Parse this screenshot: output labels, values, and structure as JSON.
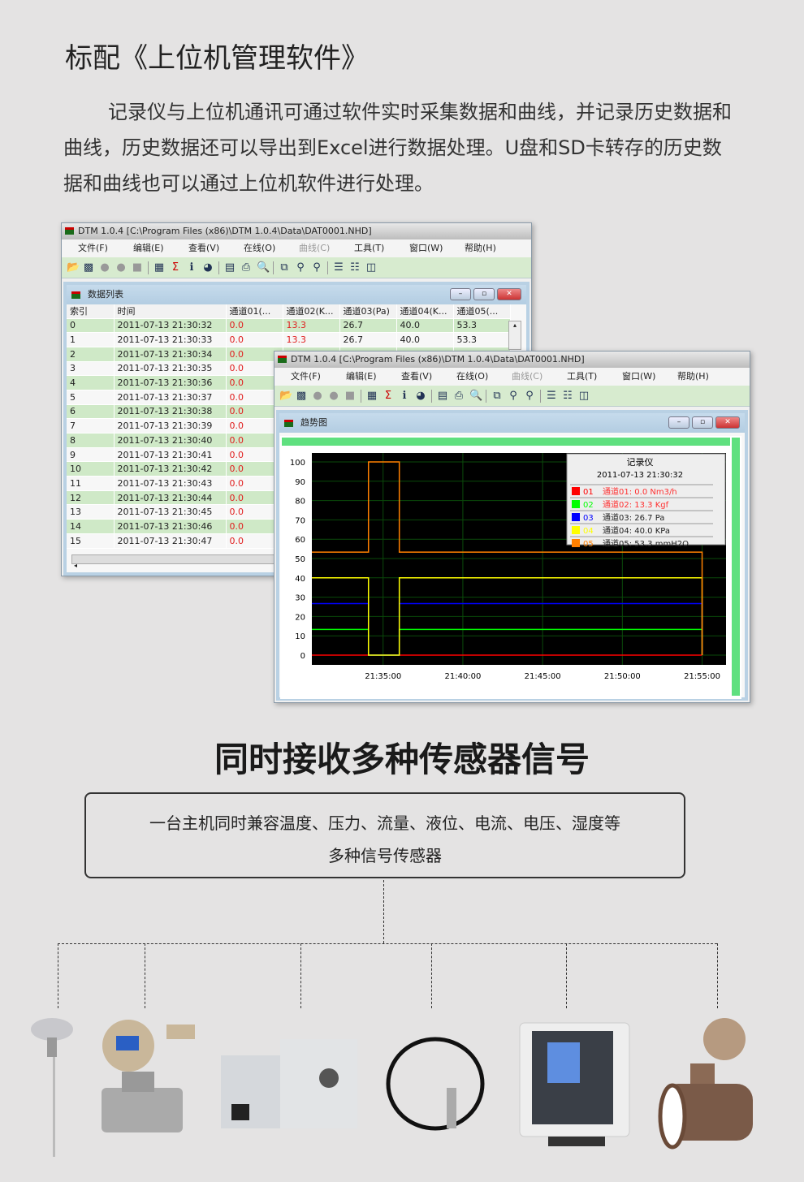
{
  "title": "标配《上位机管理软件》",
  "intro": "记录仪与上位机通讯可通过软件实时采集数据和曲线，并记录历史数据和曲线，历史数据还可以导出到Excel进行数据处理。U盘和SD卡转存的历史数据和曲线也可以通过上位机软件进行处理。",
  "window1": {
    "title": "DTM 1.0.4 [C:\\Program Files (x86)\\DTM 1.0.4\\Data\\DAT0001.NHD]",
    "menu": [
      "文件(F)",
      "编辑(E)",
      "查看(V)",
      "在线(O)",
      "曲线(C)",
      "工具(T)",
      "窗口(W)",
      "帮助(H)"
    ],
    "inner_title": "数据列表",
    "columns": [
      "索引",
      "时间",
      "通道01(...",
      "通道02(K...",
      "通道03(Pa)",
      "通道04(K...",
      "通道05(..."
    ],
    "rows": [
      [
        "0",
        "2011-07-13 21:30:32",
        "0.0",
        "13.3",
        "26.7",
        "40.0",
        "53.3"
      ],
      [
        "1",
        "2011-07-13 21:30:33",
        "0.0",
        "13.3",
        "26.7",
        "40.0",
        "53.3"
      ],
      [
        "2",
        "2011-07-13 21:30:34",
        "0.0"
      ],
      [
        "3",
        "2011-07-13 21:30:35",
        "0.0"
      ],
      [
        "4",
        "2011-07-13 21:30:36",
        "0.0"
      ],
      [
        "5",
        "2011-07-13 21:30:37",
        "0.0"
      ],
      [
        "6",
        "2011-07-13 21:30:38",
        "0.0"
      ],
      [
        "7",
        "2011-07-13 21:30:39",
        "0.0"
      ],
      [
        "8",
        "2011-07-13 21:30:40",
        "0.0"
      ],
      [
        "9",
        "2011-07-13 21:30:41",
        "0.0"
      ],
      [
        "10",
        "2011-07-13 21:30:42",
        "0.0"
      ],
      [
        "11",
        "2011-07-13 21:30:43",
        "0.0"
      ],
      [
        "12",
        "2011-07-13 21:30:44",
        "0.0"
      ],
      [
        "13",
        "2011-07-13 21:30:45",
        "0.0"
      ],
      [
        "14",
        "2011-07-13 21:30:46",
        "0.0"
      ],
      [
        "15",
        "2011-07-13 21:30:47",
        "0.0"
      ]
    ]
  },
  "window2": {
    "title": "DTM 1.0.4 [C:\\Program Files (x86)\\DTM 1.0.4\\Data\\DAT0001.NHD]",
    "menu": [
      "文件(F)",
      "编辑(E)",
      "查看(V)",
      "在线(O)",
      "曲线(C)",
      "工具(T)",
      "窗口(W)",
      "帮助(H)"
    ],
    "inner_title": "趋势图"
  },
  "chart_data": {
    "type": "line",
    "background": "#000000",
    "grid": true,
    "ylim": [
      0,
      100
    ],
    "yticks": [
      0,
      10,
      20,
      30,
      40,
      50,
      60,
      70,
      80,
      90,
      100
    ],
    "xlim": [
      "21:30:32",
      "21:56:30"
    ],
    "xticks": [
      "21:35:00",
      "21:40:00",
      "21:45:00",
      "21:50:00",
      "21:55:00"
    ],
    "legend": {
      "title": "记录仪",
      "time": "2011-07-13 21:30:32",
      "placement": "top-right",
      "entries": [
        {
          "code": "01",
          "text": "通道01: 0.0 Nm3/h",
          "color": "#ff0000"
        },
        {
          "code": "02",
          "text": "通道02: 13.3 Kgf",
          "color": "#00ff00"
        },
        {
          "code": "03",
          "text": "通道03: 26.7 Pa",
          "color": "#0000ff"
        },
        {
          "code": "04",
          "text": "通道04: 40.0 KPa",
          "color": "#ffff00"
        },
        {
          "code": "05",
          "text": "通道05: 53.3 mmH2O",
          "color": "#ff8000"
        }
      ]
    },
    "series": [
      {
        "color": "#ff0000",
        "points": [
          [
            "21:30:32",
            0
          ],
          [
            "21:55:00",
            0
          ]
        ]
      },
      {
        "color": "#00ff00",
        "points": [
          [
            "21:30:32",
            13.3
          ],
          [
            "21:34:05",
            13.3
          ],
          [
            "21:34:05",
            0
          ],
          [
            "21:36:01",
            0
          ],
          [
            "21:36:01",
            13.3
          ],
          [
            "21:55:00",
            13.3
          ],
          [
            "21:55:00",
            0
          ]
        ]
      },
      {
        "color": "#0000ff",
        "points": [
          [
            "21:30:32",
            26.7
          ],
          [
            "21:34:05",
            26.7
          ],
          [
            "21:34:05",
            0
          ],
          [
            "21:36:01",
            0
          ],
          [
            "21:36:01",
            26.7
          ],
          [
            "21:55:00",
            26.7
          ],
          [
            "21:55:00",
            0
          ]
        ]
      },
      {
        "color": "#ffff00",
        "points": [
          [
            "21:30:32",
            40
          ],
          [
            "21:34:05",
            40
          ],
          [
            "21:34:05",
            0
          ],
          [
            "21:36:01",
            0
          ],
          [
            "21:36:01",
            40
          ],
          [
            "21:55:00",
            40
          ],
          [
            "21:55:00",
            0
          ]
        ]
      },
      {
        "color": "#ff8000",
        "points": [
          [
            "21:30:32",
            53.3
          ],
          [
            "21:34:05",
            53.3
          ],
          [
            "21:34:05",
            100
          ],
          [
            "21:36:01",
            100
          ],
          [
            "21:36:01",
            53.3
          ],
          [
            "21:55:00",
            53.3
          ],
          [
            "21:55:00",
            0
          ]
        ]
      }
    ]
  },
  "heading2": "同时接收多种传感器信号",
  "box": {
    "line1": "一台主机同时兼容温度、压力、流量、液位、电流、电压、湿度等",
    "line2": "多种信号传感器"
  },
  "sensors": [
    "temperature-probe",
    "pressure-transmitter",
    "current-transformer",
    "level-sensor",
    "humidity-meter",
    "electromagnetic-flowmeter"
  ]
}
